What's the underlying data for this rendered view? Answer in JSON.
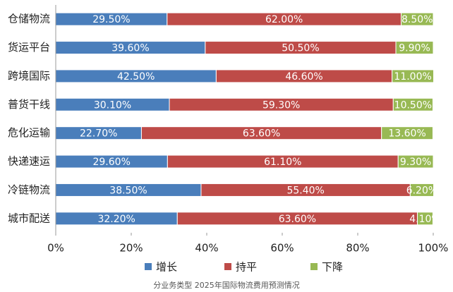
{
  "chart_data": {
    "type": "stacked-bar-horizontal",
    "caption": "分业务类型 2025年国际物流费用预测情况",
    "categories": [
      "仓储物流",
      "货运平台",
      "跨境国际",
      "普货干线",
      "危化运输",
      "快递速运",
      "冷链物流",
      "城市配送"
    ],
    "series": [
      {
        "name": "增长",
        "color": "#4a7ebb",
        "values": [
          29.5,
          39.6,
          42.5,
          30.1,
          22.7,
          29.6,
          38.5,
          32.2
        ],
        "value_labels": [
          "29.50%",
          "39.60%",
          "42.50%",
          "30.10%",
          "22.70%",
          "29.60%",
          "38.50%",
          "32.20%"
        ]
      },
      {
        "name": "持平",
        "color": "#be4b48",
        "values": [
          62.0,
          50.5,
          46.6,
          59.3,
          63.6,
          61.1,
          55.4,
          63.6
        ],
        "value_labels": [
          "62.00%",
          "50.50%",
          "46.60%",
          "59.30%",
          "63.60%",
          "61.10%",
          "55.40%",
          "63.60%"
        ]
      },
      {
        "name": "下降",
        "color": "#98b954",
        "values": [
          8.5,
          9.9,
          11.0,
          10.5,
          13.6,
          9.3,
          6.2,
          4.1
        ],
        "value_labels": [
          "8.50%",
          "9.90%",
          "11.00%",
          "10.50%",
          "13.60%",
          "9.30%",
          "6.20%",
          "4.10%"
        ]
      }
    ],
    "xlim": [
      0,
      100
    ],
    "xticks": [
      {
        "value": 0,
        "label": "0%"
      },
      {
        "value": 20,
        "label": "20%"
      },
      {
        "value": 40,
        "label": "40%"
      },
      {
        "value": 60,
        "label": "60%"
      },
      {
        "value": 80,
        "label": "80%"
      },
      {
        "value": 100,
        "label": "100%"
      }
    ],
    "legend": "bottom"
  }
}
